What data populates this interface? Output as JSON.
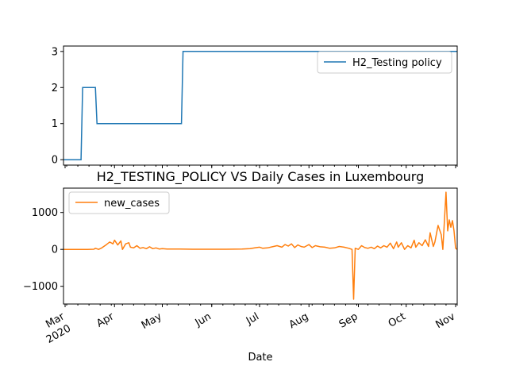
{
  "chart_data": [
    {
      "type": "line",
      "title": "",
      "xlabel": "",
      "ylabel": "",
      "ylim": [
        -0.15,
        3.15
      ],
      "yticks": [
        "0",
        "1",
        "2",
        "3"
      ],
      "legend": {
        "placement": "top-right",
        "entries": [
          "H2_Testing policy"
        ]
      },
      "series": [
        {
          "name": "H2_Testing policy",
          "color": "#1f77b4",
          "x": [
            "2020-02-29",
            "2020-03-11",
            "2020-03-12",
            "2020-03-20",
            "2020-03-21",
            "2020-05-13",
            "2020-05-14",
            "2020-11-02"
          ],
          "values": [
            0,
            0,
            2,
            2,
            1,
            1,
            3,
            3
          ]
        }
      ]
    },
    {
      "type": "line",
      "title": "H2_TESTING_POLICY VS Daily Cases in Luxembourg",
      "xlabel": "Date",
      "ylabel": "",
      "ylim": [
        -1480,
        1660
      ],
      "yticks": [
        "−1000",
        "0",
        "1000"
      ],
      "legend": {
        "placement": "top-left",
        "entries": [
          "new_cases"
        ]
      },
      "x_major_ticks": [
        {
          "date": "2020-03-01",
          "label": "Mar",
          "label2": "2020"
        },
        {
          "date": "2020-04-01",
          "label": "Apr"
        },
        {
          "date": "2020-05-01",
          "label": "May"
        },
        {
          "date": "2020-06-01",
          "label": "Jun"
        },
        {
          "date": "2020-07-01",
          "label": "Jul"
        },
        {
          "date": "2020-08-01",
          "label": "Aug"
        },
        {
          "date": "2020-09-01",
          "label": "Sep"
        },
        {
          "date": "2020-10-01",
          "label": "Oct"
        },
        {
          "date": "2020-11-01",
          "label": "Nov"
        }
      ],
      "x_range": [
        "2020-02-29",
        "2020-11-02"
      ],
      "series": [
        {
          "name": "new_cases",
          "color": "#ff7f0e",
          "x": [
            "2020-02-29",
            "2020-03-05",
            "2020-03-10",
            "2020-03-15",
            "2020-03-17",
            "2020-03-19",
            "2020-03-20",
            "2020-03-22",
            "2020-03-24",
            "2020-03-26",
            "2020-03-27",
            "2020-03-29",
            "2020-03-31",
            "2020-04-01",
            "2020-04-03",
            "2020-04-05",
            "2020-04-06",
            "2020-04-08",
            "2020-04-10",
            "2020-04-11",
            "2020-04-13",
            "2020-04-15",
            "2020-04-17",
            "2020-04-19",
            "2020-04-21",
            "2020-04-23",
            "2020-04-25",
            "2020-04-27",
            "2020-04-29",
            "2020-05-01",
            "2020-05-04",
            "2020-05-08",
            "2020-05-12",
            "2020-05-20",
            "2020-05-30",
            "2020-06-10",
            "2020-06-20",
            "2020-06-25",
            "2020-06-28",
            "2020-07-01",
            "2020-07-03",
            "2020-07-06",
            "2020-07-09",
            "2020-07-12",
            "2020-07-15",
            "2020-07-17",
            "2020-07-19",
            "2020-07-21",
            "2020-07-23",
            "2020-07-25",
            "2020-07-27",
            "2020-07-29",
            "2020-08-01",
            "2020-08-03",
            "2020-08-05",
            "2020-08-08",
            "2020-08-11",
            "2020-08-14",
            "2020-08-17",
            "2020-08-20",
            "2020-08-23",
            "2020-08-26",
            "2020-08-28",
            "2020-08-29",
            "2020-08-30",
            "2020-09-01",
            "2020-09-03",
            "2020-09-05",
            "2020-09-07",
            "2020-09-09",
            "2020-09-11",
            "2020-09-13",
            "2020-09-15",
            "2020-09-17",
            "2020-09-19",
            "2020-09-21",
            "2020-09-23",
            "2020-09-25",
            "2020-09-26",
            "2020-09-28",
            "2020-09-30",
            "2020-10-02",
            "2020-10-04",
            "2020-10-06",
            "2020-10-07",
            "2020-10-09",
            "2020-10-11",
            "2020-10-13",
            "2020-10-15",
            "2020-10-16",
            "2020-10-18",
            "2020-10-19",
            "2020-10-21",
            "2020-10-23",
            "2020-10-24",
            "2020-10-26",
            "2020-10-27",
            "2020-10-28",
            "2020-10-29",
            "2020-10-30",
            "2020-10-31",
            "2020-11-01",
            "2020-11-02"
          ],
          "values": [
            0,
            0,
            0,
            0,
            2,
            5,
            30,
            0,
            40,
            100,
            130,
            200,
            150,
            250,
            120,
            230,
            0,
            150,
            180,
            60,
            40,
            100,
            30,
            50,
            20,
            70,
            20,
            40,
            10,
            20,
            10,
            10,
            10,
            5,
            5,
            5,
            10,
            20,
            40,
            60,
            30,
            40,
            70,
            100,
            60,
            130,
            90,
            150,
            50,
            120,
            80,
            60,
            130,
            50,
            100,
            70,
            60,
            30,
            40,
            80,
            60,
            30,
            0,
            -1350,
            30,
            0,
            100,
            50,
            30,
            60,
            20,
            90,
            40,
            100,
            60,
            170,
            20,
            200,
            60,
            180,
            0,
            100,
            40,
            250,
            60,
            180,
            100,
            260,
            80,
            450,
            80,
            200,
            650,
            400,
            0,
            1550,
            500,
            800,
            600,
            780,
            500,
            30,
            0
          ]
        }
      ]
    }
  ]
}
